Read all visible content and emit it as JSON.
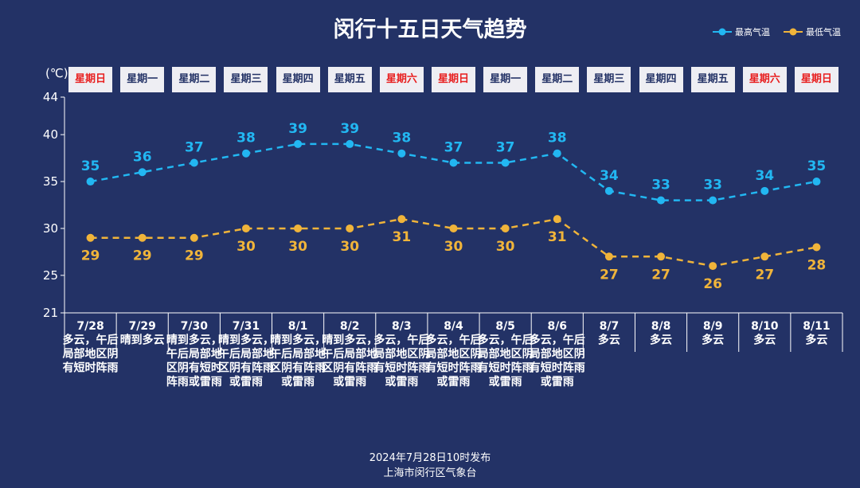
{
  "title": "闵行十五日天气趋势",
  "unit": "(℃)",
  "legend": [
    {
      "label": "最高气温",
      "color": "#22b7f2"
    },
    {
      "label": "最低气温",
      "color": "#f0b43a"
    }
  ],
  "colors": {
    "background": "#233266",
    "high": "#22b7f2",
    "low": "#f0b43a",
    "weekend": "#e81f1f"
  },
  "weekdays": [
    {
      "label": "星期日",
      "weekend": true
    },
    {
      "label": "星期一",
      "weekend": false
    },
    {
      "label": "星期二",
      "weekend": false
    },
    {
      "label": "星期三",
      "weekend": false
    },
    {
      "label": "星期四",
      "weekend": false
    },
    {
      "label": "星期五",
      "weekend": false
    },
    {
      "label": "星期六",
      "weekend": true
    },
    {
      "label": "星期日",
      "weekend": true
    },
    {
      "label": "星期一",
      "weekend": false
    },
    {
      "label": "星期二",
      "weekend": false
    },
    {
      "label": "星期三",
      "weekend": false
    },
    {
      "label": "星期四",
      "weekend": false
    },
    {
      "label": "星期五",
      "weekend": false
    },
    {
      "label": "星期六",
      "weekend": true
    },
    {
      "label": "星期日",
      "weekend": true
    }
  ],
  "chart_data": {
    "type": "line",
    "title": "闵行十五日天气趋势",
    "ylabel": "(℃)",
    "ylim": [
      21,
      44
    ],
    "yticks": [
      21,
      25,
      30,
      35,
      40,
      44
    ],
    "categories": [
      "7/28",
      "7/29",
      "7/30",
      "7/31",
      "8/1",
      "8/2",
      "8/3",
      "8/4",
      "8/5",
      "8/6",
      "8/7",
      "8/8",
      "8/9",
      "8/10",
      "8/11"
    ],
    "weather": [
      "多云，午后局部地区阴有短时阵雨",
      "晴到多云",
      "晴到多云，午后局部地区阴有短时阵雨或雷雨",
      "晴到多云，午后局部地区阴有阵雨或雷雨",
      "晴到多云，午后局部地区阴有阵雨或雷雨",
      "晴到多云，午后局部地区阴有阵雨或雷雨",
      "多云，午后局部地区阴有短时阵雨或雷雨",
      "多云，午后局部地区阴有短时阵雨或雷雨",
      "多云，午后局部地区阴有短时阵雨或雷雨",
      "多云，午后局部地区阴有短时阵雨或雷雨",
      "多云",
      "多云",
      "多云",
      "多云",
      "多云"
    ],
    "series": [
      {
        "name": "最高气温",
        "values": [
          35,
          36,
          37,
          38,
          39,
          39,
          38,
          37,
          37,
          38,
          34,
          33,
          33,
          34,
          35
        ]
      },
      {
        "name": "最低气温",
        "values": [
          29,
          29,
          29,
          30,
          30,
          30,
          31,
          30,
          30,
          31,
          27,
          27,
          26,
          27,
          28
        ]
      }
    ],
    "legend_position": "top-right"
  },
  "footer": {
    "line1": "2024年7月28日10时发布",
    "line2": "上海市闵行区气象台"
  }
}
